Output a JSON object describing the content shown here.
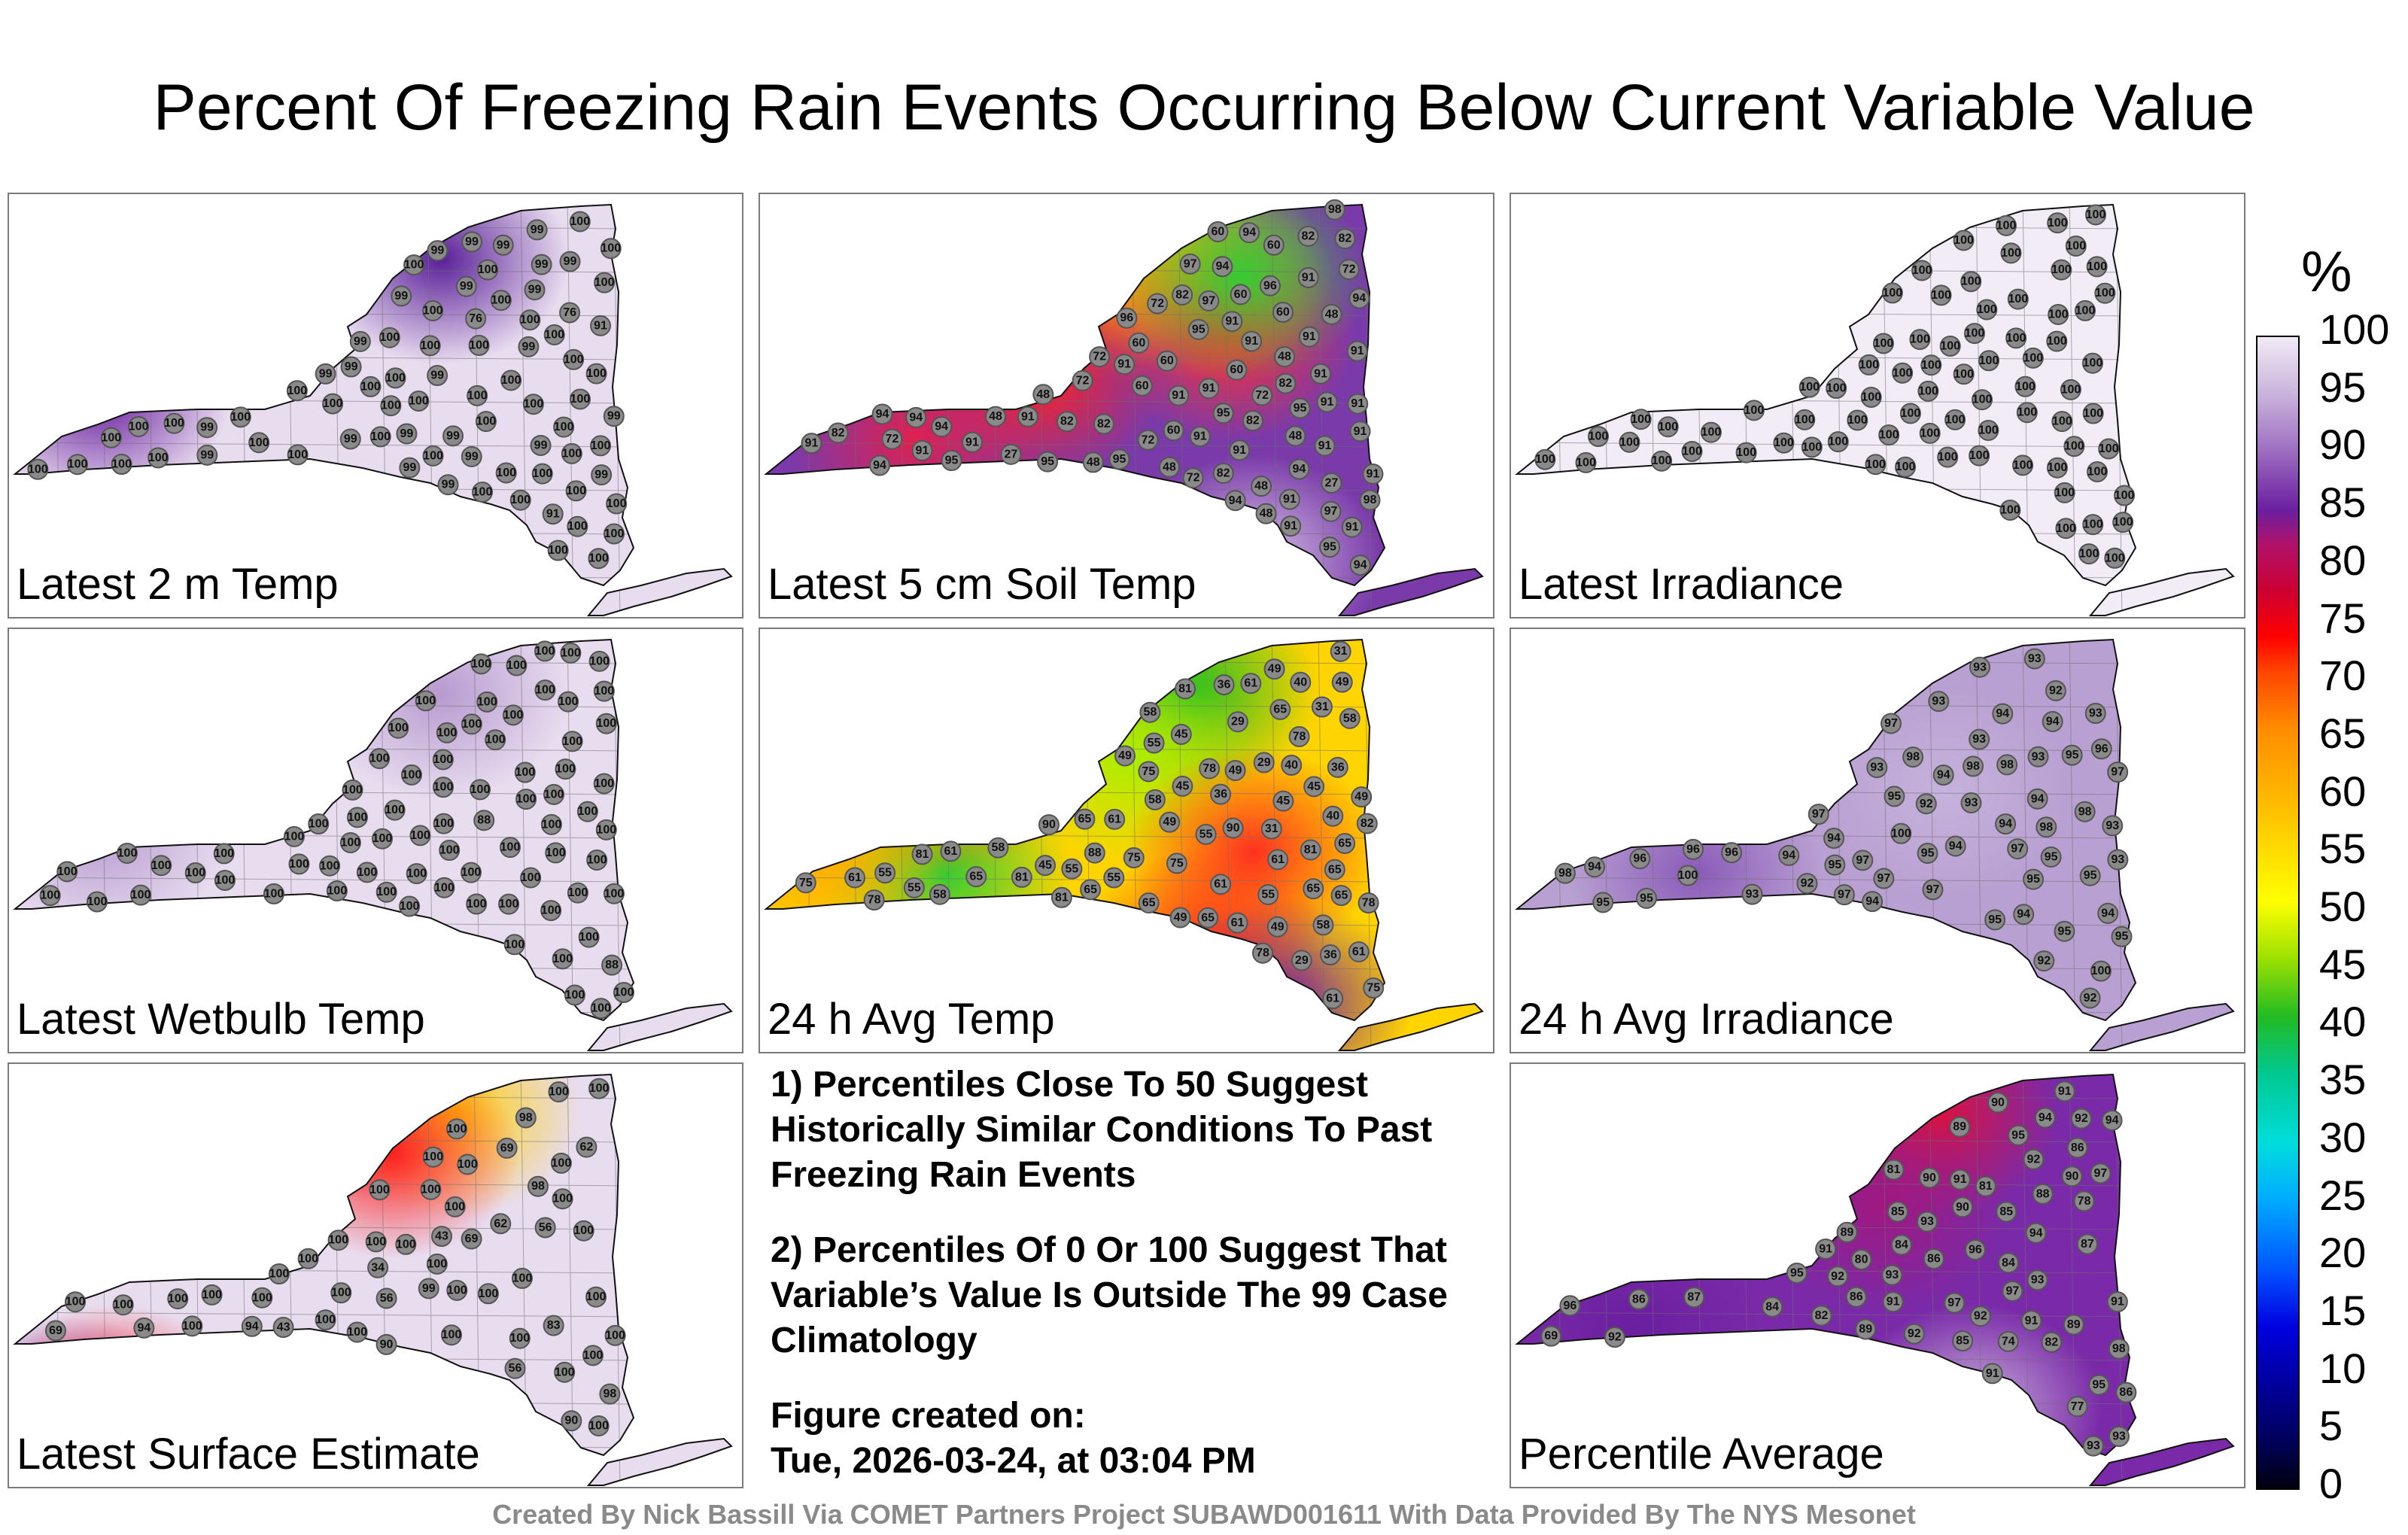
{
  "title": "Percent Of Freezing Rain Events Occurring Below Current Variable Value",
  "panels": [
    {
      "label": "Latest 2 m Temp",
      "fill": "#e8dcef",
      "hot": [
        [
          0.7,
          0.16,
          "#5a1f99"
        ],
        [
          0.15,
          0.5,
          "#6a1fa0"
        ]
      ],
      "values": [
        99,
        99,
        99,
        99,
        99,
        76,
        91,
        99,
        91,
        99,
        99,
        100,
        99,
        99,
        99,
        99,
        100,
        99,
        99,
        100,
        100,
        100,
        99,
        100,
        100,
        100,
        99,
        100,
        99,
        100,
        100,
        99,
        100,
        100,
        100,
        99,
        100,
        100,
        100,
        100,
        100,
        99,
        100,
        100,
        100,
        99,
        100,
        100,
        76,
        99,
        100,
        100,
        100,
        99,
        100,
        100,
        100,
        100,
        100,
        99,
        100,
        100,
        100,
        99,
        100,
        100,
        100,
        100,
        100,
        100,
        100,
        100,
        100,
        100,
        100,
        100,
        100,
        100,
        100
      ]
    },
    {
      "label": "Latest 5 cm Soil Temp",
      "fill": "#7a3aaa",
      "hot": [
        [
          0.6,
          0.12,
          "#ffb000"
        ],
        [
          0.55,
          0.2,
          "#ff8000"
        ],
        [
          0.72,
          0.2,
          "#ffcc00"
        ],
        [
          0.45,
          0.45,
          "#ff2020"
        ],
        [
          0.25,
          0.6,
          "#e02050"
        ],
        [
          0.76,
          0.35,
          "#ff3030"
        ],
        [
          0.78,
          0.2,
          "#33cc33"
        ],
        [
          0.8,
          0.9,
          "#d7c6e6"
        ]
      ],
      "values": [
        60,
        60,
        48,
        72,
        60,
        95,
        48,
        72,
        48,
        60,
        48,
        82,
        48,
        60,
        72,
        82,
        72,
        48,
        27,
        60,
        82,
        48,
        60,
        82,
        91,
        91,
        60,
        48,
        27,
        94,
        82,
        91,
        91,
        72,
        48,
        60,
        91,
        91,
        91,
        94,
        91,
        94,
        82,
        72,
        91,
        82,
        91,
        91,
        91,
        94,
        91,
        94,
        82,
        72,
        91,
        82,
        91,
        91,
        91,
        94,
        95,
        91,
        91,
        91,
        94,
        95,
        95,
        96,
        94,
        95,
        72,
        91,
        91,
        95,
        91,
        94,
        95,
        97,
        94,
        97,
        98,
        96,
        97,
        98
      ]
    },
    {
      "label": "Latest Irradiance",
      "fill": "#f1ecf6",
      "hot": [],
      "values": [
        100,
        100,
        100,
        100,
        100,
        100,
        100,
        100,
        100,
        100,
        100,
        100,
        100,
        100,
        100,
        100,
        100,
        100,
        100,
        100,
        100,
        100,
        100,
        100,
        100,
        100,
        100,
        100,
        100,
        100,
        100,
        100,
        100,
        100,
        100,
        100,
        100,
        100,
        100,
        100,
        100,
        100,
        100,
        100,
        100,
        100,
        100,
        100,
        100,
        100,
        100,
        100,
        100,
        100,
        100,
        100,
        100,
        100,
        100,
        100,
        100,
        100,
        100,
        100,
        100,
        100,
        100,
        100,
        100,
        100,
        100,
        100,
        100,
        100,
        100,
        100,
        100,
        100
      ]
    },
    {
      "label": "Latest Wetbulb Temp",
      "fill": "#e8dcef",
      "hot": [
        [
          0.7,
          0.16,
          "#b79ad0"
        ],
        [
          0.15,
          0.5,
          "#b79ad0"
        ]
      ],
      "values": [
        100,
        100,
        100,
        88,
        100,
        100,
        100,
        100,
        100,
        100,
        100,
        100,
        100,
        100,
        100,
        100,
        100,
        100,
        100,
        100,
        100,
        100,
        100,
        100,
        100,
        100,
        100,
        100,
        100,
        100,
        100,
        100,
        100,
        100,
        100,
        100,
        100,
        100,
        88,
        100,
        100,
        100,
        100,
        100,
        100,
        100,
        100,
        100,
        100,
        100,
        100,
        100,
        100,
        100,
        100,
        100,
        100,
        100,
        100,
        100,
        100,
        100,
        100,
        100,
        100,
        100,
        100,
        100,
        100,
        100,
        100,
        100,
        100,
        100,
        100,
        100
      ]
    },
    {
      "label": "24 h Avg Temp",
      "fill": "#ffd400",
      "hot": [
        [
          0.7,
          0.15,
          "#22bb22"
        ],
        [
          0.3,
          0.6,
          "#33cc33"
        ],
        [
          0.6,
          0.32,
          "#aaee00"
        ],
        [
          0.8,
          0.55,
          "#ff3020"
        ],
        [
          0.72,
          0.8,
          "#ff2020"
        ],
        [
          0.85,
          0.92,
          "#7020a0"
        ],
        [
          0.3,
          0.35,
          "#ff6a00"
        ],
        [
          0.1,
          0.55,
          "#ffaa00"
        ]
      ],
      "values": [
        61,
        49,
        45,
        61,
        55,
        40,
        29,
        36,
        65,
        61,
        58,
        31,
        29,
        49,
        58,
        31,
        36,
        29,
        58,
        45,
        36,
        45,
        65,
        61,
        78,
        61,
        75,
        75,
        65,
        61,
        65,
        55,
        61,
        65,
        78,
        75,
        75,
        78,
        49,
        45,
        55,
        65,
        55,
        61,
        49,
        65,
        75,
        58,
        49,
        36,
        40,
        58,
        55,
        49,
        58,
        65,
        45,
        49,
        40,
        81,
        31,
        55,
        65,
        65,
        49,
        61,
        81,
        55,
        78,
        81,
        78,
        82,
        81,
        81,
        88,
        90,
        90
      ]
    },
    {
      "label": "24 h Avg Irradiance",
      "fill": "#b9a0d2",
      "hot": [
        [
          0.3,
          0.6,
          "#8a5ab8"
        ],
        [
          0.7,
          0.4,
          "#c6b2dc"
        ]
      ],
      "values": [
        93,
        93,
        94,
        94,
        94,
        93,
        93,
        97,
        94,
        94,
        92,
        93,
        95,
        96,
        93,
        100,
        95,
        98,
        97,
        94,
        92,
        94,
        95,
        98,
        97,
        98,
        93,
        94,
        92,
        95,
        94,
        92,
        95,
        98,
        96,
        94,
        92,
        97,
        93,
        93,
        94,
        95,
        93,
        95,
        95,
        97,
        98,
        96,
        95,
        93,
        95,
        97,
        94,
        98,
        95,
        100,
        100,
        97,
        95,
        96,
        97
      ]
    },
    {
      "label": "Latest Surface Estimate",
      "fill": "#e8dcef",
      "hot": [
        [
          0.52,
          0.08,
          "#ff3a00"
        ],
        [
          0.72,
          0.12,
          "#ffd000"
        ],
        [
          0.62,
          0.22,
          "#ff2020"
        ],
        [
          0.1,
          0.88,
          "#6a1fa0"
        ],
        [
          0.17,
          0.85,
          "#ff2020"
        ]
      ],
      "values": [
        90,
        43,
        69,
        100,
        62,
        83,
        69,
        69,
        34,
        43,
        56,
        56,
        90,
        94,
        98,
        94,
        99,
        98,
        100,
        100,
        100,
        100,
        100,
        62,
        100,
        98,
        100,
        100,
        100,
        100,
        100,
        100,
        100,
        56,
        100,
        100,
        100,
        100,
        100,
        100,
        100,
        100,
        100,
        100,
        100,
        100,
        100,
        100,
        100,
        100,
        100,
        100,
        100,
        100,
        100,
        100
      ]
    },
    {
      "label": "Percentile Average",
      "fill": "#7a2aa8",
      "hot": [
        [
          0.68,
          0.12,
          "#e0103a"
        ],
        [
          0.6,
          0.35,
          "#a01880"
        ],
        [
          0.2,
          0.65,
          "#6a1fa0"
        ],
        [
          0.75,
          0.85,
          "#c9b3dc"
        ]
      ],
      "values": [
        86,
        78,
        81,
        86,
        87,
        69,
        80,
        77,
        74,
        84,
        87,
        82,
        85,
        89,
        81,
        82,
        84,
        85,
        86,
        88,
        84,
        91,
        93,
        91,
        94,
        95,
        86,
        95,
        94,
        92,
        93,
        90,
        91,
        89,
        90,
        86,
        92,
        92,
        95,
        89,
        93,
        90,
        92,
        90,
        91,
        92,
        91,
        89,
        91,
        85,
        92,
        93,
        91,
        97,
        93,
        96,
        94,
        96,
        97,
        98,
        97
      ]
    }
  ],
  "notes": [
    "1) Percentiles Close To 50 Suggest Historically Similar Conditions To Past Freezing Rain Events",
    "2) Percentiles Of 0 Or 100 Suggest That Variable’s Value Is Outside The 99 Case Climatology"
  ],
  "created_label": "Figure created on:",
  "created_date": "Tue, 2026-03-24, at 03:04 PM",
  "footer": "Created By Nick Bassill Via COMET Partners Project SUBAWD001611 With Data Provided By The NYS Mesonet",
  "colorbar": {
    "unit": "%",
    "ticks": [
      "100",
      "95",
      "90",
      "85",
      "80",
      "75",
      "70",
      "65",
      "60",
      "55",
      "50",
      "45",
      "40",
      "35",
      "30",
      "25",
      "20",
      "15",
      "10",
      "5",
      "0"
    ]
  }
}
